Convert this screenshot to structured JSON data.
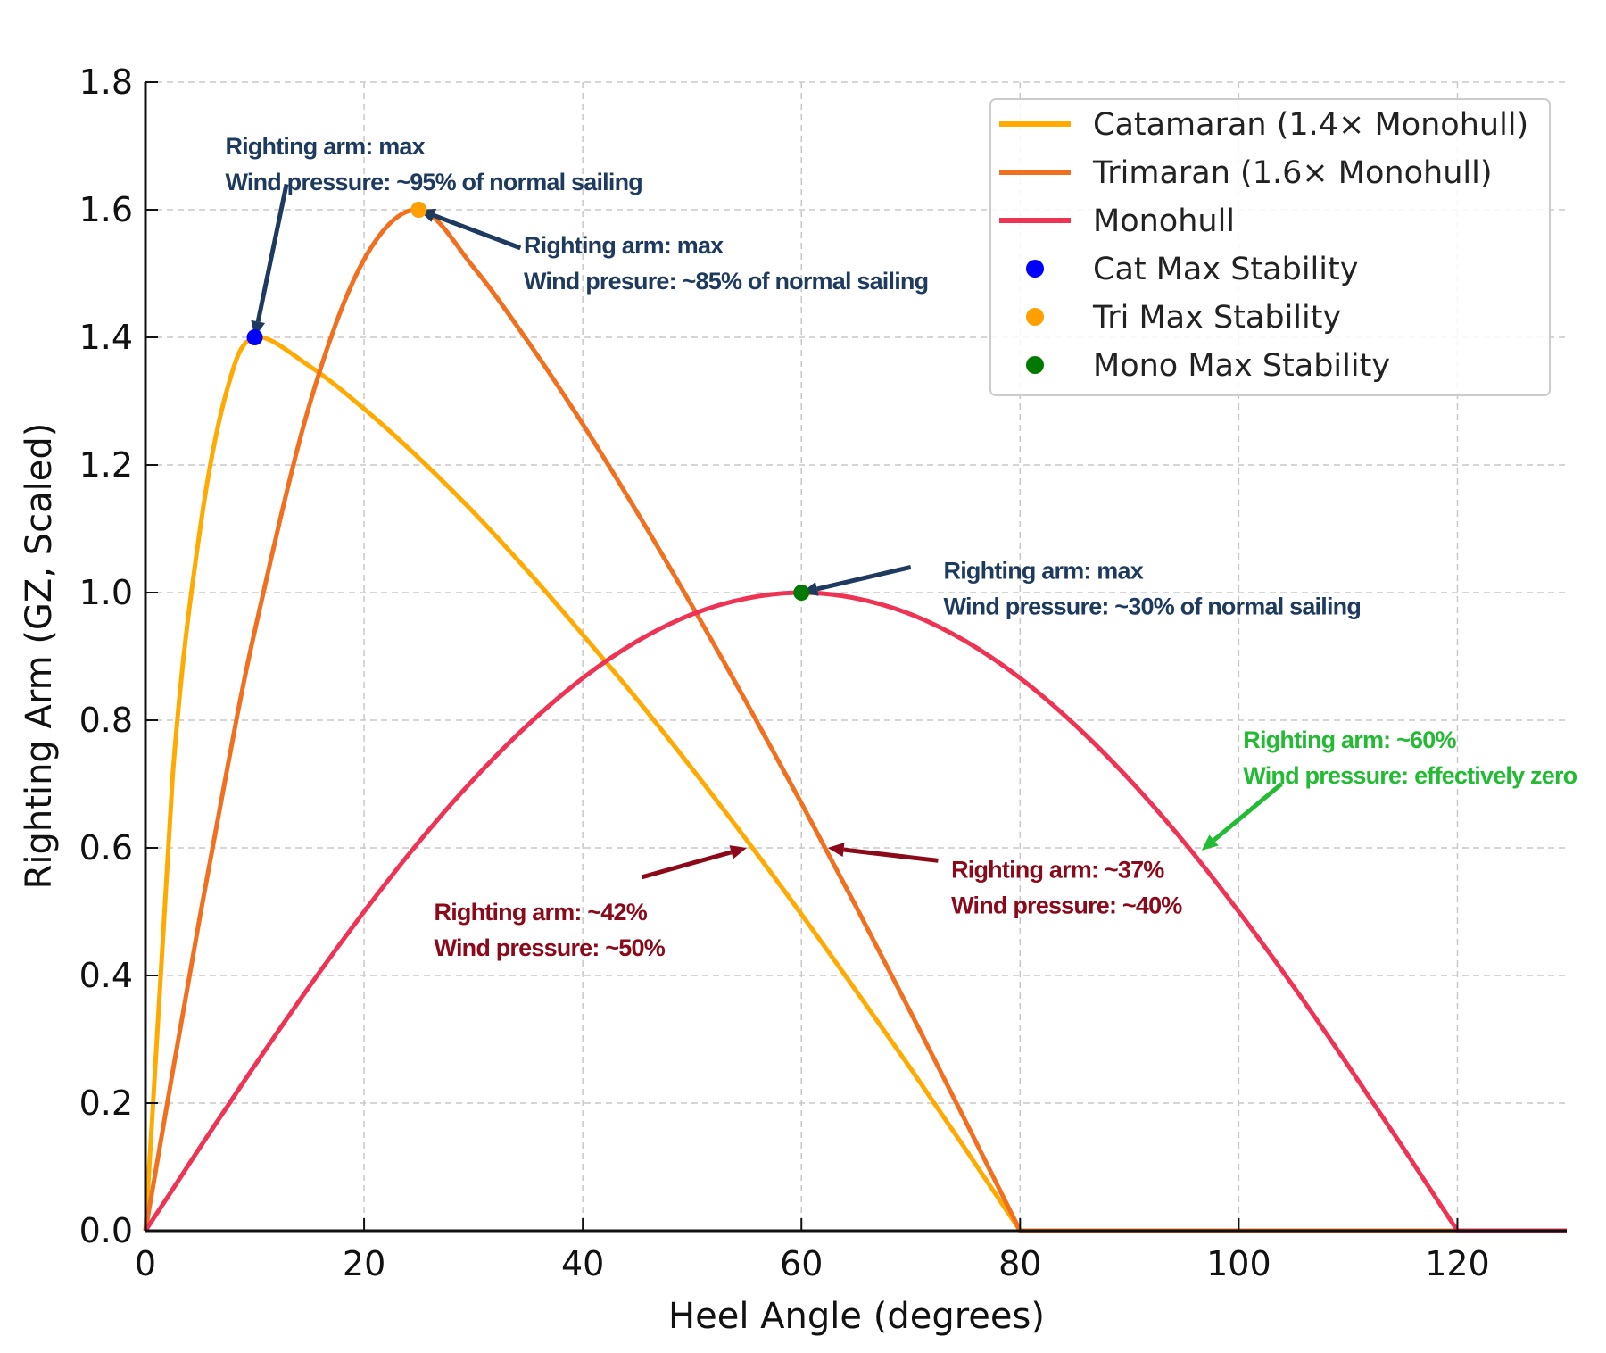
{
  "chart_data": {
    "type": "line",
    "title": "",
    "xlabel": "Heel Angle (degrees)",
    "ylabel": "Righting Arm (GZ, Scaled)",
    "xlim": [
      0,
      130
    ],
    "ylim": [
      0,
      1.8
    ],
    "xticks": [
      "0",
      "20",
      "40",
      "60",
      "80",
      "100",
      "120"
    ],
    "yticks": [
      "0.0",
      "0.2",
      "0.4",
      "0.6",
      "0.8",
      "1.0",
      "1.2",
      "1.4",
      "1.6",
      "1.8"
    ],
    "grid": true,
    "legend_position": "top-right",
    "x": [
      0,
      2.5,
      5,
      7.5,
      10,
      15,
      20,
      25,
      30,
      35,
      40,
      45,
      50,
      55,
      60,
      65,
      70,
      75,
      80,
      85,
      90,
      95,
      100,
      105,
      110,
      115,
      120,
      125,
      130
    ],
    "series": [
      {
        "name": "Catamaran (1.4× Monohull)",
        "color": "#FFAA00",
        "values": [
          0,
          0.715,
          1.1,
          1.32,
          1.4,
          1.355,
          1.288,
          1.211,
          1.126,
          1.033,
          0.934,
          0.832,
          0.724,
          0.612,
          0.496,
          0.376,
          0.254,
          0.128,
          0,
          0,
          0,
          0,
          0,
          0,
          0,
          0,
          0,
          0,
          0
        ]
      },
      {
        "name": "Trimaran (1.6× Monohull)",
        "color": "#F07020",
        "values": [
          0,
          0.25,
          0.494,
          0.726,
          0.94,
          1.294,
          1.522,
          1.6,
          1.51,
          1.393,
          1.264,
          1.125,
          0.979,
          0.827,
          0.67,
          0.508,
          0.342,
          0.172,
          0,
          0,
          0,
          0,
          0,
          0,
          0,
          0,
          0,
          0,
          0
        ]
      },
      {
        "name": "Monohull",
        "color": "#EE3355",
        "values": [
          0,
          0.065,
          0.131,
          0.195,
          0.259,
          0.383,
          0.5,
          0.609,
          0.707,
          0.793,
          0.866,
          0.924,
          0.966,
          0.991,
          1,
          0.991,
          0.966,
          0.924,
          0.866,
          0.793,
          0.707,
          0.609,
          0.5,
          0.383,
          0.259,
          0.131,
          0,
          0,
          0
        ]
      }
    ],
    "points": [
      {
        "name": "Cat Max Stability",
        "x": 10,
        "y": 1.4,
        "color": "#0000FF"
      },
      {
        "name": "Tri Max Stability",
        "x": 25,
        "y": 1.6,
        "color": "#FFA000"
      },
      {
        "name": "Mono Max Stability",
        "x": 60,
        "y": 1.0,
        "color": "#007A00"
      }
    ],
    "annotations": [
      {
        "lines": [
          "Righting arm: max",
          "Wind pressure: ~95% of normal sailing"
        ],
        "color": "#1F3A5F",
        "xy": [
          10,
          1.4
        ],
        "xytext": [
          7.3,
          1.72
        ],
        "tail": [
          12.9,
          1.64
        ]
      },
      {
        "lines": [
          "Righting arm: max",
          "Wind presure: ~85% of normal sailing"
        ],
        "color": "#1F3A5F",
        "xy": [
          25,
          1.6
        ],
        "xytext": [
          34.6,
          1.565
        ],
        "tail": [
          34.3,
          1.54
        ]
      },
      {
        "lines": [
          "Righting arm: max",
          "Wind pressure: ~30% of normal sailing"
        ],
        "color": "#1F3A5F",
        "xy": [
          60,
          1.0
        ],
        "xytext": [
          73,
          1.055
        ],
        "tail": [
          70,
          1.04
        ]
      },
      {
        "lines": [
          "Righting arm: ~60%",
          "Wind pressure: effectively zero"
        ],
        "color": "#22BB33",
        "xy": [
          96.6,
          0.596
        ],
        "xytext": [
          100.4,
          0.79
        ],
        "tail": [
          103.9,
          0.7
        ]
      },
      {
        "lines": [
          "Righting arm: ~42%",
          "Wind pressure: ~50%"
        ],
        "color": "#8B0A1A",
        "xy": [
          55,
          0.6
        ],
        "xytext": [
          26.4,
          0.52
        ],
        "tail": [
          45.4,
          0.554
        ]
      },
      {
        "lines": [
          "Righting arm: ~37%",
          "Wind pressure: ~40%"
        ],
        "color": "#8B0A1A",
        "xy": [
          62.4,
          0.6
        ],
        "xytext": [
          73.7,
          0.587
        ],
        "tail": [
          72.5,
          0.58
        ]
      }
    ]
  }
}
